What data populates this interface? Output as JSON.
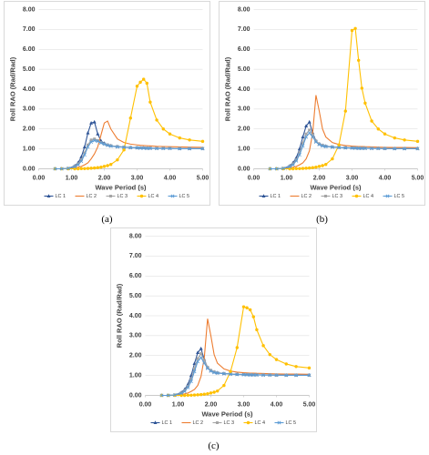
{
  "chart_data": [
    {
      "type": "line",
      "caption": "(a)",
      "xlabel": "Wave Period (s)",
      "ylabel": "Roll RAO (Rad/Rad)",
      "grid": true,
      "legend": "bottom",
      "xlim": [
        0,
        5
      ],
      "xticks": [
        {
          "value": 0,
          "label": "0.00"
        },
        {
          "value": 1,
          "label": "1.00"
        },
        {
          "value": 2,
          "label": "2.00"
        },
        {
          "value": 3,
          "label": "3.00"
        },
        {
          "value": 4,
          "label": "4.00"
        },
        {
          "value": 5,
          "label": "5.00"
        }
      ],
      "ylim": [
        0,
        8
      ],
      "yticks": [
        {
          "value": 0,
          "label": "0.00"
        },
        {
          "value": 1,
          "label": "1.00"
        },
        {
          "value": 2,
          "label": "2.00"
        },
        {
          "value": 3,
          "label": "3.00"
        },
        {
          "value": 4,
          "label": "4.00"
        },
        {
          "value": 5,
          "label": "5.00"
        },
        {
          "value": 6,
          "label": "6.00"
        },
        {
          "value": 7,
          "label": "7.00"
        },
        {
          "value": 8,
          "label": "8.00"
        }
      ],
      "x": [
        0.5,
        0.7,
        0.9,
        1.1,
        1.2,
        1.3,
        1.4,
        1.5,
        1.6,
        1.7,
        1.8,
        1.9,
        2.0,
        2.1,
        2.2,
        2.4,
        2.6,
        2.8,
        3.0,
        3.1,
        3.2,
        3.3,
        3.4,
        3.6,
        3.8,
        4.0,
        4.3,
        4.6,
        5.0
      ],
      "series": [
        {
          "name": "LC 1",
          "color": "#2f5597",
          "marker": "triangle",
          "values": [
            0,
            0,
            0.02,
            0.15,
            0.3,
            0.6,
            1.1,
            1.8,
            2.3,
            2.35,
            1.75,
            1.4,
            1.28,
            1.2,
            1.16,
            1.12,
            1.09,
            1.07,
            1.06,
            1.05,
            1.05,
            1.04,
            1.04,
            1.03,
            1.03,
            1.03,
            1.02,
            1.02,
            1.02
          ]
        },
        {
          "name": "LC 2",
          "color": "#ed7d31",
          "marker": "none",
          "values": [
            0,
            0,
            0.01,
            0.05,
            0.08,
            0.12,
            0.2,
            0.3,
            0.5,
            0.75,
            1.1,
            1.7,
            2.3,
            2.4,
            2.0,
            1.5,
            1.32,
            1.24,
            1.2,
            1.18,
            1.17,
            1.16,
            1.15,
            1.13,
            1.12,
            1.11,
            1.1,
            1.09,
            1.08
          ]
        },
        {
          "name": "LC 3",
          "color": "#a5a5a5",
          "marker": "square",
          "values": [
            0,
            0,
            0.02,
            0.12,
            0.25,
            0.45,
            0.8,
            1.2,
            1.45,
            1.5,
            1.42,
            1.32,
            1.25,
            1.2,
            1.16,
            1.12,
            1.09,
            1.07,
            1.06,
            1.05,
            1.05,
            1.04,
            1.04,
            1.03,
            1.03,
            1.03,
            1.02,
            1.02,
            1.02
          ]
        },
        {
          "name": "LC 4",
          "color": "#ffc000",
          "marker": "circle",
          "values": [
            0,
            0,
            0,
            0,
            0,
            0.01,
            0.01,
            0.02,
            0.03,
            0.04,
            0.06,
            0.08,
            0.12,
            0.16,
            0.22,
            0.45,
            0.95,
            2.55,
            4.15,
            4.35,
            4.5,
            4.3,
            3.35,
            2.45,
            2.0,
            1.75,
            1.55,
            1.45,
            1.38
          ]
        },
        {
          "name": "LC 5",
          "color": "#5b9bd5",
          "marker": "cross",
          "values": [
            0,
            0,
            0.02,
            0.1,
            0.2,
            0.38,
            0.7,
            1.1,
            1.35,
            1.42,
            1.38,
            1.3,
            1.24,
            1.18,
            1.14,
            1.1,
            1.08,
            1.06,
            1.05,
            1.04,
            1.04,
            1.03,
            1.03,
            1.02,
            1.02,
            1.02,
            1.01,
            1.01,
            1.01
          ]
        }
      ]
    },
    {
      "type": "line",
      "caption": "(b)",
      "xlabel": "Wave Period (s)",
      "ylabel": "Roll RAO (Rad/Rad)",
      "grid": true,
      "legend": "bottom",
      "xlim": [
        0,
        5
      ],
      "xticks": [
        {
          "value": 0,
          "label": "0.00"
        },
        {
          "value": 1,
          "label": "1.00"
        },
        {
          "value": 2,
          "label": "2.00"
        },
        {
          "value": 3,
          "label": "3.00"
        },
        {
          "value": 4,
          "label": "4.00"
        },
        {
          "value": 5,
          "label": "5.00"
        }
      ],
      "ylim": [
        0,
        8
      ],
      "yticks": [
        {
          "value": 0,
          "label": "0.00"
        },
        {
          "value": 1,
          "label": "1.00"
        },
        {
          "value": 2,
          "label": "2.00"
        },
        {
          "value": 3,
          "label": "3.00"
        },
        {
          "value": 4,
          "label": "4.00"
        },
        {
          "value": 5,
          "label": "5.00"
        },
        {
          "value": 6,
          "label": "6.00"
        },
        {
          "value": 7,
          "label": "7.00"
        },
        {
          "value": 8,
          "label": "8.00"
        }
      ],
      "x": [
        0.5,
        0.7,
        0.9,
        1.1,
        1.2,
        1.3,
        1.4,
        1.5,
        1.6,
        1.7,
        1.8,
        1.9,
        2.0,
        2.1,
        2.2,
        2.4,
        2.6,
        2.8,
        3.0,
        3.1,
        3.2,
        3.3,
        3.4,
        3.6,
        3.8,
        4.0,
        4.3,
        4.6,
        5.0
      ],
      "series": [
        {
          "name": "LC 1",
          "color": "#2f5597",
          "marker": "triangle",
          "values": [
            0,
            0,
            0.02,
            0.15,
            0.3,
            0.55,
            1.0,
            1.6,
            2.15,
            2.35,
            1.8,
            1.4,
            1.25,
            1.18,
            1.14,
            1.1,
            1.08,
            1.06,
            1.05,
            1.05,
            1.04,
            1.04,
            1.03,
            1.03,
            1.03,
            1.02,
            1.02,
            1.02,
            1.02
          ]
        },
        {
          "name": "LC 2",
          "color": "#ed7d31",
          "marker": "none",
          "values": [
            0,
            0,
            0.01,
            0.05,
            0.08,
            0.12,
            0.2,
            0.3,
            0.5,
            0.9,
            1.8,
            3.7,
            2.9,
            2.0,
            1.6,
            1.32,
            1.22,
            1.17,
            1.14,
            1.13,
            1.12,
            1.12,
            1.11,
            1.1,
            1.09,
            1.08,
            1.07,
            1.07,
            1.06
          ]
        },
        {
          "name": "LC 3",
          "color": "#a5a5a5",
          "marker": "square",
          "values": [
            0,
            0,
            0.02,
            0.12,
            0.25,
            0.45,
            0.8,
            1.3,
            1.75,
            1.95,
            1.7,
            1.4,
            1.25,
            1.18,
            1.13,
            1.1,
            1.08,
            1.06,
            1.05,
            1.04,
            1.04,
            1.03,
            1.03,
            1.03,
            1.02,
            1.02,
            1.02,
            1.02,
            1.01
          ]
        },
        {
          "name": "LC 4",
          "color": "#ffc000",
          "marker": "circle",
          "values": [
            0,
            0,
            0,
            0,
            0,
            0.01,
            0.01,
            0.02,
            0.03,
            0.04,
            0.06,
            0.08,
            0.12,
            0.16,
            0.22,
            0.5,
            1.2,
            2.9,
            6.95,
            7.05,
            5.45,
            4.05,
            3.3,
            2.4,
            2.0,
            1.75,
            1.55,
            1.45,
            1.38
          ]
        },
        {
          "name": "LC 5",
          "color": "#5b9bd5",
          "marker": "cross",
          "values": [
            0,
            0,
            0.02,
            0.1,
            0.2,
            0.4,
            0.7,
            1.15,
            1.6,
            1.8,
            1.6,
            1.35,
            1.22,
            1.15,
            1.12,
            1.09,
            1.07,
            1.05,
            1.04,
            1.04,
            1.03,
            1.03,
            1.03,
            1.02,
            1.02,
            1.02,
            1.01,
            1.01,
            1.01
          ]
        }
      ]
    },
    {
      "type": "line",
      "caption": "(c)",
      "xlabel": "Wave Period (s)",
      "ylabel": "Roll RAO (Rad/Rad)",
      "grid": true,
      "legend": "bottom",
      "xlim": [
        0,
        5
      ],
      "xticks": [
        {
          "value": 0,
          "label": "0.00"
        },
        {
          "value": 1,
          "label": "1.00"
        },
        {
          "value": 2,
          "label": "2.00"
        },
        {
          "value": 3,
          "label": "3.00"
        },
        {
          "value": 4,
          "label": "4.00"
        },
        {
          "value": 5,
          "label": "5.00"
        }
      ],
      "ylim": [
        0,
        8
      ],
      "yticks": [
        {
          "value": 0,
          "label": "0.00"
        },
        {
          "value": 1,
          "label": "1.00"
        },
        {
          "value": 2,
          "label": "2.00"
        },
        {
          "value": 3,
          "label": "3.00"
        },
        {
          "value": 4,
          "label": "4.00"
        },
        {
          "value": 5,
          "label": "5.00"
        },
        {
          "value": 6,
          "label": "6.00"
        },
        {
          "value": 7,
          "label": "7.00"
        },
        {
          "value": 8,
          "label": "8.00"
        }
      ],
      "x": [
        0.5,
        0.7,
        0.9,
        1.1,
        1.2,
        1.3,
        1.4,
        1.5,
        1.6,
        1.7,
        1.8,
        1.9,
        2.0,
        2.1,
        2.2,
        2.4,
        2.6,
        2.8,
        3.0,
        3.1,
        3.2,
        3.3,
        3.4,
        3.6,
        3.8,
        4.0,
        4.3,
        4.6,
        5.0
      ],
      "series": [
        {
          "name": "LC 1",
          "color": "#2f5597",
          "marker": "triangle",
          "values": [
            0,
            0,
            0.02,
            0.15,
            0.3,
            0.55,
            1.0,
            1.6,
            2.15,
            2.35,
            1.8,
            1.4,
            1.25,
            1.18,
            1.14,
            1.1,
            1.08,
            1.06,
            1.05,
            1.05,
            1.04,
            1.04,
            1.03,
            1.03,
            1.03,
            1.02,
            1.02,
            1.02,
            1.02
          ]
        },
        {
          "name": "LC 2",
          "color": "#ed7d31",
          "marker": "none",
          "values": [
            0,
            0,
            0.01,
            0.05,
            0.08,
            0.12,
            0.2,
            0.3,
            0.5,
            0.95,
            1.9,
            3.85,
            3.0,
            2.05,
            1.62,
            1.33,
            1.22,
            1.17,
            1.14,
            1.13,
            1.12,
            1.12,
            1.11,
            1.1,
            1.09,
            1.08,
            1.07,
            1.07,
            1.06
          ]
        },
        {
          "name": "LC 3",
          "color": "#a5a5a5",
          "marker": "square",
          "values": [
            0,
            0,
            0.02,
            0.12,
            0.25,
            0.45,
            0.8,
            1.35,
            1.85,
            2.1,
            1.75,
            1.42,
            1.26,
            1.18,
            1.13,
            1.1,
            1.08,
            1.06,
            1.05,
            1.04,
            1.04,
            1.03,
            1.03,
            1.03,
            1.02,
            1.02,
            1.02,
            1.02,
            1.01
          ]
        },
        {
          "name": "LC 4",
          "color": "#ffc000",
          "marker": "circle",
          "values": [
            0,
            0,
            0,
            0,
            0,
            0.01,
            0.01,
            0.02,
            0.03,
            0.04,
            0.06,
            0.08,
            0.12,
            0.16,
            0.22,
            0.5,
            1.2,
            2.4,
            4.45,
            4.4,
            4.3,
            3.95,
            3.3,
            2.5,
            2.05,
            1.8,
            1.58,
            1.45,
            1.38
          ]
        },
        {
          "name": "LC 5",
          "color": "#5b9bd5",
          "marker": "cross",
          "values": [
            0,
            0,
            0.02,
            0.1,
            0.2,
            0.4,
            0.7,
            1.2,
            1.7,
            1.9,
            1.62,
            1.36,
            1.22,
            1.15,
            1.12,
            1.09,
            1.07,
            1.05,
            1.04,
            1.04,
            1.03,
            1.03,
            1.03,
            1.02,
            1.02,
            1.02,
            1.01,
            1.01,
            1.01
          ]
        }
      ]
    }
  ]
}
